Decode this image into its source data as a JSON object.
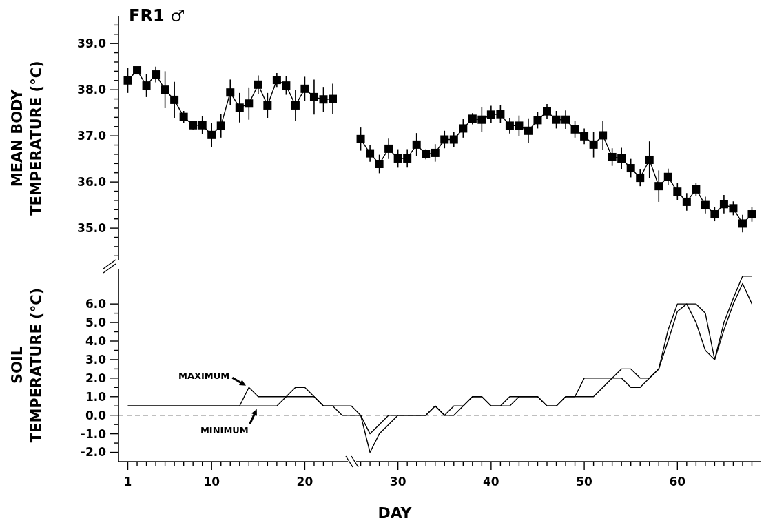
{
  "chart_data": [
    {
      "type": "line",
      "title": "FR1 ♂",
      "ylabel": "MEAN BODY\nTEMPERATURE (°C)",
      "marker": "square",
      "tick_labels": "y",
      "ylim": [
        34.3,
        39.6
      ],
      "yticks": [
        {
          "value": 34.4,
          "label": null
        },
        {
          "value": 34.6,
          "label": null
        },
        {
          "value": 34.8,
          "label": null
        },
        {
          "value": 35,
          "label": "35.0"
        },
        {
          "value": 35.2,
          "label": null
        },
        {
          "value": 35.4,
          "label": null
        },
        {
          "value": 35.6,
          "label": null
        },
        {
          "value": 35.8,
          "label": null
        },
        {
          "value": 36,
          "label": "36.0"
        },
        {
          "value": 36.2,
          "label": null
        },
        {
          "value": 36.4,
          "label": null
        },
        {
          "value": 36.6,
          "label": null
        },
        {
          "value": 36.8,
          "label": null
        },
        {
          "value": 37,
          "label": "37.0"
        },
        {
          "value": 37.2,
          "label": null
        },
        {
          "value": 37.4,
          "label": null
        },
        {
          "value": 37.6,
          "label": null
        },
        {
          "value": 37.8,
          "label": null
        },
        {
          "value": 38,
          "label": "38.0"
        },
        {
          "value": 38.2,
          "label": null
        },
        {
          "value": 38.4,
          "label": null
        },
        {
          "value": 38.6,
          "label": null
        },
        {
          "value": 38.8,
          "label": null
        },
        {
          "value": 39,
          "label": "39.0"
        },
        {
          "value": 39.2,
          "label": null
        },
        {
          "value": 39.4,
          "label": null
        }
      ],
      "x": [
        1,
        2,
        3,
        4,
        5,
        6,
        7,
        8,
        9,
        10,
        11,
        12,
        13,
        14,
        15,
        16,
        17,
        18,
        19,
        20,
        21,
        22,
        23,
        24,
        25,
        26,
        27,
        28,
        29,
        30,
        31,
        32,
        33,
        34,
        35,
        36,
        37,
        38,
        39,
        40,
        41,
        42,
        43,
        44,
        45,
        46,
        47,
        48,
        49,
        50,
        51,
        52,
        53,
        54,
        55,
        56,
        57,
        58,
        59,
        60,
        61,
        62,
        63,
        64,
        65,
        66,
        67,
        68
      ],
      "series": [
        {
          "color": "#000000",
          "values": [
            38.2,
            38.42,
            38.09,
            38.33,
            38.0,
            37.78,
            37.41,
            37.23,
            37.23,
            37.02,
            37.22,
            37.94,
            37.61,
            37.7,
            38.11,
            37.66,
            38.21,
            38.09,
            37.66,
            38.02,
            37.84,
            37.79,
            37.8,
            null,
            null,
            36.93,
            36.62,
            36.39,
            36.72,
            36.51,
            36.51,
            36.81,
            36.6,
            36.63,
            36.92,
            36.92,
            37.16,
            37.37,
            37.35,
            37.46,
            37.47,
            37.22,
            37.22,
            37.11,
            37.34,
            37.53,
            37.35,
            37.35,
            37.14,
            36.99,
            36.81,
            37.01,
            36.54,
            36.51,
            36.3,
            36.09,
            36.48,
            35.91,
            36.11,
            35.79,
            35.57,
            35.84,
            35.5,
            35.3,
            35.52,
            35.43,
            35.1,
            35.3
          ],
          "errors": [
            0.27,
            0.07,
            0.25,
            0.17,
            0.4,
            0.39,
            0.13,
            0.09,
            0.19,
            0.26,
            0.26,
            0.28,
            0.32,
            0.35,
            0.2,
            0.27,
            0.15,
            0.2,
            0.33,
            0.26,
            0.38,
            0.27,
            0.33,
            null,
            null,
            0.25,
            0.18,
            0.2,
            0.22,
            0.2,
            0.2,
            0.25,
            0.11,
            0.19,
            0.19,
            0.16,
            0.2,
            0.12,
            0.27,
            0.19,
            0.19,
            0.17,
            0.22,
            0.27,
            0.18,
            0.16,
            0.19,
            0.2,
            0.18,
            0.17,
            0.28,
            0.32,
            0.19,
            0.23,
            0.2,
            0.18,
            0.4,
            0.34,
            0.18,
            0.19,
            0.19,
            0.14,
            0.18,
            0.15,
            0.2,
            0.15,
            0.19,
            0.16
          ]
        }
      ]
    },
    {
      "type": "line",
      "xlabel": "DAY",
      "ylabel": "SOIL\nTEMPERATURE (°C)",
      "marker": "none",
      "xlim": [
        0,
        69
      ],
      "ylim": [
        -2.5,
        7.9
      ],
      "xticks": [
        1,
        {
          "value": 2,
          "label": null
        },
        {
          "value": 3,
          "label": null
        },
        {
          "value": 4,
          "label": null
        },
        {
          "value": 5,
          "label": null
        },
        {
          "value": 6,
          "label": null
        },
        {
          "value": 7,
          "label": null
        },
        {
          "value": 8,
          "label": null
        },
        {
          "value": 9,
          "label": null
        },
        10,
        {
          "value": 11,
          "label": null
        },
        {
          "value": 12,
          "label": null
        },
        {
          "value": 13,
          "label": null
        },
        {
          "value": 14,
          "label": null
        },
        {
          "value": 15,
          "label": null
        },
        {
          "value": 16,
          "label": null
        },
        {
          "value": 17,
          "label": null
        },
        {
          "value": 18,
          "label": null
        },
        {
          "value": 19,
          "label": null
        },
        20,
        {
          "value": 21,
          "label": null
        },
        {
          "value": 22,
          "label": null
        },
        {
          "value": 23,
          "label": null
        },
        {
          "value": 26,
          "label": null
        },
        {
          "value": 27,
          "label": null
        },
        {
          "value": 28,
          "label": null
        },
        {
          "value": 29,
          "label": null
        },
        30,
        {
          "value": 31,
          "label": null
        },
        {
          "value": 32,
          "label": null
        },
        {
          "value": 33,
          "label": null
        },
        {
          "value": 34,
          "label": null
        },
        {
          "value": 35,
          "label": null
        },
        {
          "value": 36,
          "label": null
        },
        {
          "value": 37,
          "label": null
        },
        {
          "value": 38,
          "label": null
        },
        {
          "value": 39,
          "label": null
        },
        40,
        {
          "value": 41,
          "label": null
        },
        {
          "value": 42,
          "label": null
        },
        {
          "value": 43,
          "label": null
        },
        {
          "value": 44,
          "label": null
        },
        {
          "value": 45,
          "label": null
        },
        {
          "value": 46,
          "label": null
        },
        {
          "value": 47,
          "label": null
        },
        {
          "value": 48,
          "label": null
        },
        {
          "value": 49,
          "label": null
        },
        50,
        {
          "value": 51,
          "label": null
        },
        {
          "value": 52,
          "label": null
        },
        {
          "value": 53,
          "label": null
        },
        {
          "value": 54,
          "label": null
        },
        {
          "value": 55,
          "label": null
        },
        {
          "value": 56,
          "label": null
        },
        {
          "value": 57,
          "label": null
        },
        {
          "value": 58,
          "label": null
        },
        {
          "value": 59,
          "label": null
        },
        60,
        {
          "value": 61,
          "label": null
        },
        {
          "value": 62,
          "label": null
        },
        {
          "value": 63,
          "label": null
        },
        {
          "value": 64,
          "label": null
        },
        {
          "value": 65,
          "label": null
        },
        {
          "value": 66,
          "label": null
        },
        {
          "value": 67,
          "label": null
        },
        {
          "value": 68,
          "label": null
        }
      ],
      "yticks": [
        {
          "value": -2,
          "label": "-2.0"
        },
        {
          "value": -1.5,
          "label": null
        },
        {
          "value": -1,
          "label": "-1.0"
        },
        {
          "value": -0.5,
          "label": null
        },
        {
          "value": 0,
          "label": "0.0"
        },
        {
          "value": 0.5,
          "label": null
        },
        {
          "value": 1,
          "label": "1.0"
        },
        {
          "value": 1.5,
          "label": null
        },
        {
          "value": 2,
          "label": "2.0"
        },
        {
          "value": 2.5,
          "label": null
        },
        {
          "value": 3,
          "label": "3.0"
        },
        {
          "value": 3.5,
          "label": null
        },
        {
          "value": 4,
          "label": "4.0"
        },
        {
          "value": 4.5,
          "label": null
        },
        {
          "value": 5,
          "label": "5.0"
        },
        {
          "value": 5.5,
          "label": null
        },
        {
          "value": 6,
          "label": "6.0"
        }
      ],
      "x": [
        1,
        2,
        3,
        4,
        5,
        6,
        7,
        8,
        9,
        10,
        11,
        12,
        13,
        14,
        15,
        16,
        17,
        18,
        19,
        20,
        21,
        22,
        23,
        24,
        25,
        26,
        27,
        28,
        29,
        30,
        31,
        32,
        33,
        34,
        35,
        36,
        37,
        38,
        39,
        40,
        41,
        42,
        43,
        44,
        45,
        46,
        47,
        48,
        49,
        50,
        51,
        52,
        53,
        54,
        55,
        56,
        57,
        58,
        59,
        60,
        61,
        62,
        63,
        64,
        65,
        66,
        67,
        68
      ],
      "series": [
        {
          "color": "#000000",
          "values": [
            0.5,
            0.5,
            0.5,
            0.5,
            0.5,
            0.5,
            0.5,
            0.5,
            0.5,
            0.5,
            0.5,
            0.5,
            0.5,
            1.5,
            1.0,
            1.0,
            1.0,
            1.0,
            1.5,
            1.5,
            1.0,
            0.5,
            0.5,
            0.5,
            0.5,
            0,
            -1.0,
            -0.5,
            0,
            0,
            0,
            0,
            0,
            0.5,
            0,
            0.5,
            0.5,
            1.0,
            1.0,
            0.5,
            0.5,
            1.0,
            1.0,
            1.0,
            1.0,
            0.5,
            0.5,
            1.0,
            1.0,
            2.0,
            2.0,
            2.0,
            2.0,
            2.5,
            2.5,
            2.0,
            2.0,
            2.5,
            4.6,
            6.0,
            6.0,
            6.0,
            5.5,
            3.0,
            5.0,
            6.3,
            7.5,
            7.5
          ]
        },
        {
          "color": "#000000",
          "values": [
            0.5,
            0.5,
            0.5,
            0.5,
            0.5,
            0.5,
            0.5,
            0.5,
            0.5,
            0.5,
            0.5,
            0.5,
            0.5,
            0.5,
            0.5,
            0.5,
            0.5,
            1.0,
            1.0,
            1.0,
            1.0,
            0.5,
            0.5,
            0,
            0,
            0,
            -2.0,
            -1.0,
            -0.5,
            0,
            0,
            0,
            0,
            0.5,
            0,
            0,
            0.5,
            1.0,
            1.0,
            0.5,
            0.5,
            0.5,
            1.0,
            1.0,
            1.0,
            0.5,
            0.5,
            1.0,
            1.0,
            1.0,
            1.0,
            1.5,
            2.0,
            2.0,
            1.5,
            1.5,
            2.0,
            2.5,
            4.0,
            5.6,
            6.0,
            5.0,
            3.5,
            3.0,
            4.6,
            6.0,
            7.1,
            6.0
          ]
        }
      ],
      "ref_lines": [
        {
          "axis": "y",
          "value": 0,
          "line_style": "dashed"
        }
      ],
      "annotations": [
        {
          "text": "MAXIMUM",
          "x": 14,
          "y": 1.5
        },
        {
          "text": "MINIMUM",
          "x": 15,
          "y": 0.5
        }
      ]
    }
  ]
}
